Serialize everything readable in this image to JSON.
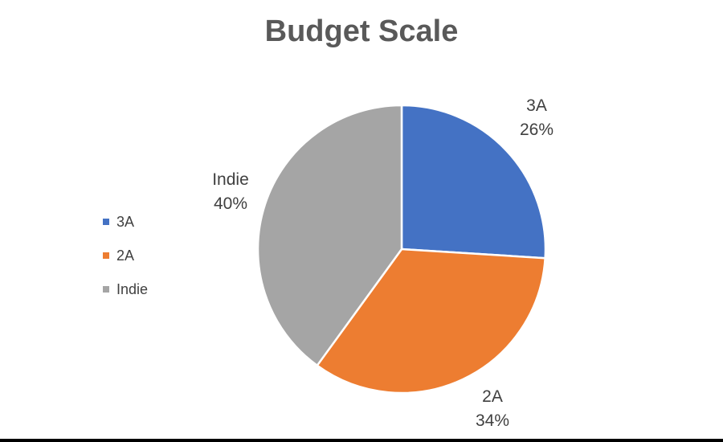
{
  "chart_data": {
    "type": "pie",
    "title": "Budget Scale",
    "categories": [
      "3A",
      "2A",
      "Indie"
    ],
    "values": [
      26,
      34,
      40
    ],
    "value_labels": [
      "26%",
      "34%",
      "40%"
    ],
    "colors": [
      "#4472C4",
      "#ED7D31",
      "#A5A5A5"
    ],
    "legend_position": "left",
    "start_angle": "12 o'clock",
    "direction": "clockwise"
  }
}
